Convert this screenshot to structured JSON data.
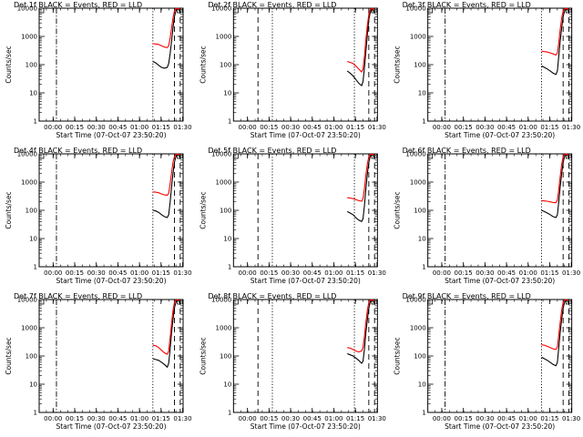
{
  "layout": {
    "rows": 3,
    "cols": 3
  },
  "common": {
    "xlabel": "Start Time (07-Oct-07 23:50:20)",
    "ylabel": "Counts/sec",
    "xtick_labels": [
      "00:00",
      "00:15",
      "00:30",
      "00:45",
      "01:00",
      "01:15",
      "01:30"
    ],
    "ytick_labels": [
      "1",
      "10",
      "100",
      "1000",
      "10000"
    ],
    "colors": {
      "events": "#000000",
      "lld": "#ff0000"
    }
  },
  "chart_data": [
    {
      "type": "line",
      "title": "Det 1f BLACK = Events, RED = LLD",
      "xlabel": "Start Time (07-Oct-07 23:50:20)",
      "ylabel": "Counts/sec",
      "x_unit": "minutes since 23:50:20",
      "xlim": [
        0,
        100
      ],
      "ylim": [
        1,
        10000
      ],
      "y_scale": "log",
      "vlines": [
        {
          "x": 12,
          "style": "dashdot"
        },
        {
          "x": 79,
          "style": "dotted"
        },
        {
          "x": 94,
          "style": "dashed"
        },
        {
          "x": 98,
          "style": "dashed"
        }
      ],
      "series": [
        {
          "name": "Events",
          "color": "#000000",
          "x": [
            79,
            81,
            83,
            85,
            87,
            89,
            90,
            91,
            92,
            93,
            94,
            95,
            96,
            97,
            98
          ],
          "y": [
            130,
            115,
            95,
            80,
            75,
            80,
            110,
            250,
            700,
            2000,
            5000,
            8000,
            9500,
            9000,
            7000
          ]
        },
        {
          "name": "LLD",
          "color": "#ff0000",
          "x": [
            79,
            81,
            83,
            85,
            87,
            89,
            90,
            91,
            92,
            93,
            94,
            95,
            96,
            97,
            98
          ],
          "y": [
            550,
            540,
            520,
            470,
            420,
            400,
            470,
            900,
            2000,
            4500,
            8000,
            9500,
            9800,
            9600,
            9000
          ]
        }
      ]
    },
    {
      "type": "line",
      "title": "Det 2f BLACK = Events, RED = LLD",
      "xlabel": "Start Time (07-Oct-07 23:50:20)",
      "ylabel": "Counts/sec",
      "x_unit": "minutes since 23:50:20",
      "xlim": [
        0,
        100
      ],
      "ylim": [
        1,
        10000
      ],
      "y_scale": "log",
      "vlines": [
        {
          "x": 17,
          "style": "dashed"
        },
        {
          "x": 27,
          "style": "dotted"
        },
        {
          "x": 84,
          "style": "dotted"
        },
        {
          "x": 94,
          "style": "dashed"
        },
        {
          "x": 98,
          "style": "dashed"
        }
      ],
      "series": [
        {
          "name": "Events",
          "color": "#000000",
          "x": [
            79,
            81,
            83,
            85,
            87,
            89,
            90,
            91,
            92,
            93,
            94,
            95,
            96,
            97,
            98
          ],
          "y": [
            60,
            50,
            40,
            30,
            22,
            18,
            25,
            80,
            300,
            1200,
            4000,
            7000,
            9000,
            8500,
            7000
          ]
        },
        {
          "name": "LLD",
          "color": "#ff0000",
          "x": [
            79,
            81,
            83,
            85,
            87,
            89,
            90,
            91,
            92,
            93,
            94,
            95,
            96,
            97,
            98
          ],
          "y": [
            130,
            120,
            110,
            90,
            70,
            55,
            70,
            200,
            800,
            2500,
            6000,
            9000,
            9800,
            9500,
            9000
          ]
        }
      ]
    },
    {
      "type": "line",
      "title": "Det 3f BLACK = Events, RED = LLD",
      "xlabel": "Start Time (07-Oct-07 23:50:20)",
      "ylabel": "Counts/sec",
      "x_unit": "minutes since 23:50:20",
      "xlim": [
        0,
        100
      ],
      "ylim": [
        1,
        10000
      ],
      "y_scale": "log",
      "vlines": [
        {
          "x": 12,
          "style": "dashdot"
        },
        {
          "x": 79,
          "style": "dotted"
        },
        {
          "x": 94,
          "style": "dashed"
        },
        {
          "x": 98,
          "style": "dashed"
        }
      ],
      "series": [
        {
          "name": "Events",
          "color": "#000000",
          "x": [
            79,
            81,
            83,
            85,
            87,
            89,
            90,
            91,
            92,
            93,
            94,
            95,
            96,
            97,
            98
          ],
          "y": [
            90,
            80,
            70,
            60,
            50,
            45,
            60,
            200,
            700,
            2000,
            5000,
            8000,
            9500,
            9000,
            7000
          ]
        },
        {
          "name": "LLD",
          "color": "#ff0000",
          "x": [
            79,
            81,
            83,
            85,
            87,
            89,
            90,
            91,
            92,
            93,
            94,
            95,
            96,
            97,
            98
          ],
          "y": [
            300,
            290,
            280,
            260,
            240,
            220,
            260,
            600,
            1800,
            4500,
            8000,
            9500,
            9800,
            9600,
            9000
          ]
        }
      ]
    },
    {
      "type": "line",
      "title": "Det 4f BLACK = Events, RED = LLD",
      "xlabel": "Start Time (07-Oct-07 23:50:20)",
      "ylabel": "Counts/sec",
      "x_unit": "minutes since 23:50:20",
      "xlim": [
        0,
        100
      ],
      "ylim": [
        1,
        10000
      ],
      "y_scale": "log",
      "vlines": [
        {
          "x": 12,
          "style": "dashdot"
        },
        {
          "x": 79,
          "style": "dotted"
        },
        {
          "x": 94,
          "style": "dashed"
        },
        {
          "x": 98,
          "style": "dashed"
        }
      ],
      "series": [
        {
          "name": "Events",
          "color": "#000000",
          "x": [
            79,
            81,
            83,
            85,
            87,
            89,
            90,
            91,
            92,
            93,
            94,
            95,
            96,
            97,
            98
          ],
          "y": [
            100,
            95,
            85,
            70,
            60,
            55,
            70,
            200,
            700,
            2000,
            5000,
            8000,
            9500,
            9000,
            7000
          ]
        },
        {
          "name": "LLD",
          "color": "#ff0000",
          "x": [
            79,
            81,
            83,
            85,
            87,
            89,
            90,
            91,
            92,
            93,
            94,
            95,
            96,
            97,
            98
          ],
          "y": [
            450,
            440,
            420,
            380,
            350,
            340,
            400,
            900,
            2200,
            5000,
            8000,
            9500,
            9800,
            9600,
            9000
          ]
        }
      ]
    },
    {
      "type": "line",
      "title": "Det 5f BLACK = Events, RED = LLD",
      "xlabel": "Start Time (07-Oct-07 23:50:20)",
      "ylabel": "Counts/sec",
      "x_unit": "minutes since 23:50:20",
      "xlim": [
        0,
        100
      ],
      "ylim": [
        1,
        10000
      ],
      "y_scale": "log",
      "vlines": [
        {
          "x": 17,
          "style": "dashed"
        },
        {
          "x": 27,
          "style": "dotted"
        },
        {
          "x": 84,
          "style": "dotted"
        },
        {
          "x": 94,
          "style": "dashed"
        },
        {
          "x": 98,
          "style": "dashed"
        }
      ],
      "series": [
        {
          "name": "Events",
          "color": "#000000",
          "x": [
            79,
            81,
            83,
            85,
            87,
            89,
            90,
            91,
            92,
            93,
            94,
            95,
            96,
            97,
            98
          ],
          "y": [
            90,
            80,
            70,
            55,
            45,
            40,
            50,
            150,
            600,
            2000,
            5000,
            8000,
            9500,
            9000,
            7000
          ]
        },
        {
          "name": "LLD",
          "color": "#ff0000",
          "x": [
            79,
            81,
            83,
            85,
            87,
            89,
            90,
            91,
            92,
            93,
            94,
            95,
            96,
            97,
            98
          ],
          "y": [
            280,
            270,
            260,
            240,
            220,
            210,
            260,
            600,
            1800,
            4500,
            8000,
            9500,
            9800,
            9600,
            9000
          ]
        }
      ]
    },
    {
      "type": "line",
      "title": "Det 6f BLACK = Events, RED = LLD",
      "xlabel": "Start Time (07-Oct-07 23:50:20)",
      "ylabel": "Counts/sec",
      "x_unit": "minutes since 23:50:20",
      "xlim": [
        0,
        100
      ],
      "ylim": [
        1,
        10000
      ],
      "y_scale": "log",
      "vlines": [
        {
          "x": 12,
          "style": "dashdot"
        },
        {
          "x": 79,
          "style": "dotted"
        },
        {
          "x": 94,
          "style": "dashed"
        },
        {
          "x": 98,
          "style": "dashed"
        }
      ],
      "series": [
        {
          "name": "Events",
          "color": "#000000",
          "x": [
            79,
            81,
            83,
            85,
            87,
            89,
            90,
            91,
            92,
            93,
            94,
            95,
            96,
            97,
            98
          ],
          "y": [
            100,
            90,
            80,
            70,
            60,
            55,
            70,
            200,
            700,
            2000,
            5000,
            8000,
            9500,
            9000,
            7000
          ]
        },
        {
          "name": "LLD",
          "color": "#ff0000",
          "x": [
            79,
            81,
            83,
            85,
            87,
            89,
            90,
            91,
            92,
            93,
            94,
            95,
            96,
            97,
            98
          ],
          "y": [
            220,
            215,
            210,
            200,
            190,
            185,
            230,
            550,
            1600,
            4200,
            8000,
            9500,
            9800,
            9600,
            9000
          ]
        }
      ]
    },
    {
      "type": "line",
      "title": "Det 7f BLACK = Events, RED = LLD",
      "xlabel": "Start Time (07-Oct-07 23:50:20)",
      "ylabel": "Counts/sec",
      "x_unit": "minutes since 23:50:20",
      "xlim": [
        0,
        100
      ],
      "ylim": [
        1,
        10000
      ],
      "y_scale": "log",
      "vlines": [
        {
          "x": 12,
          "style": "dashdot"
        },
        {
          "x": 79,
          "style": "dotted"
        },
        {
          "x": 94,
          "style": "dashed"
        },
        {
          "x": 98,
          "style": "dashed"
        }
      ],
      "series": [
        {
          "name": "Events",
          "color": "#000000",
          "x": [
            79,
            81,
            83,
            85,
            87,
            89,
            90,
            91,
            92,
            93,
            94,
            95,
            96,
            97,
            98
          ],
          "y": [
            80,
            75,
            70,
            60,
            50,
            40,
            55,
            180,
            700,
            2000,
            5000,
            8000,
            9500,
            9000,
            7000
          ]
        },
        {
          "name": "LLD",
          "color": "#ff0000",
          "x": [
            79,
            81,
            83,
            85,
            87,
            89,
            90,
            91,
            92,
            93,
            94,
            95,
            96,
            97,
            98
          ],
          "y": [
            240,
            230,
            200,
            160,
            130,
            115,
            150,
            450,
            1500,
            4000,
            8000,
            9500,
            9800,
            9600,
            9000
          ]
        }
      ]
    },
    {
      "type": "line",
      "title": "Det 8f BLACK = Events, RED = LLD",
      "xlabel": "Start Time (07-Oct-07 23:50:20)",
      "ylabel": "Counts/sec",
      "x_unit": "minutes since 23:50:20",
      "xlim": [
        0,
        100
      ],
      "ylim": [
        1,
        10000
      ],
      "y_scale": "log",
      "vlines": [
        {
          "x": 17,
          "style": "dashed"
        },
        {
          "x": 27,
          "style": "dotted"
        },
        {
          "x": 84,
          "style": "dotted"
        },
        {
          "x": 94,
          "style": "dashed"
        },
        {
          "x": 98,
          "style": "dashed"
        }
      ],
      "series": [
        {
          "name": "Events",
          "color": "#000000",
          "x": [
            79,
            81,
            83,
            85,
            87,
            89,
            90,
            91,
            92,
            93,
            94,
            95,
            96,
            97,
            98
          ],
          "y": [
            120,
            110,
            100,
            85,
            70,
            55,
            65,
            180,
            700,
            2000,
            5000,
            8000,
            9500,
            9000,
            7000
          ]
        },
        {
          "name": "LLD",
          "color": "#ff0000",
          "x": [
            79,
            81,
            83,
            85,
            87,
            89,
            90,
            91,
            92,
            93,
            94,
            95,
            96,
            97,
            98
          ],
          "y": [
            200,
            190,
            170,
            150,
            140,
            150,
            200,
            500,
            1600,
            4200,
            8000,
            9500,
            9800,
            9600,
            9000
          ]
        }
      ]
    },
    {
      "type": "line",
      "title": "Det 9f BLACK = Events, RED = LLD",
      "xlabel": "Start Time (07-Oct-07 23:50:20)",
      "ylabel": "Counts/sec",
      "x_unit": "minutes since 23:50:20",
      "xlim": [
        0,
        100
      ],
      "ylim": [
        1,
        10000
      ],
      "y_scale": "log",
      "vlines": [
        {
          "x": 12,
          "style": "dashdot"
        },
        {
          "x": 79,
          "style": "dotted"
        },
        {
          "x": 94,
          "style": "dashed"
        },
        {
          "x": 98,
          "style": "dashed"
        }
      ],
      "series": [
        {
          "name": "Events",
          "color": "#000000",
          "x": [
            79,
            81,
            83,
            85,
            87,
            89,
            90,
            91,
            92,
            93,
            94,
            95,
            96,
            97,
            98
          ],
          "y": [
            90,
            80,
            70,
            60,
            50,
            45,
            60,
            200,
            700,
            2000,
            5000,
            8000,
            9500,
            9000,
            7000
          ]
        },
        {
          "name": "LLD",
          "color": "#ff0000",
          "x": [
            79,
            81,
            83,
            85,
            87,
            89,
            90,
            91,
            92,
            93,
            94,
            95,
            96,
            97,
            98
          ],
          "y": [
            250,
            240,
            220,
            200,
            180,
            170,
            210,
            550,
            1600,
            4200,
            8000,
            9500,
            9800,
            9600,
            9000
          ]
        }
      ]
    }
  ]
}
